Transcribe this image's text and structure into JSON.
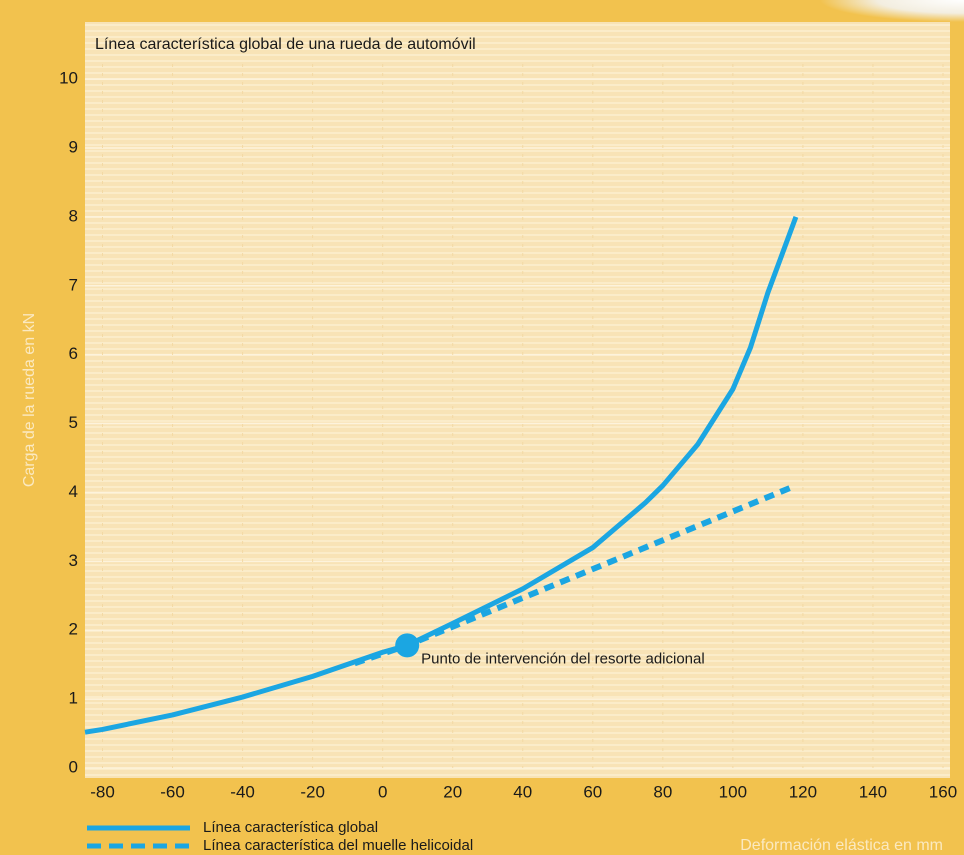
{
  "chart_data": {
    "type": "line",
    "title": "Línea característica global de una rueda de automóvil",
    "x_label": "Deformación elástica en mm",
    "y_label": "Carga de la rueda en kN",
    "xlim": [
      -85,
      162
    ],
    "ylim": [
      0,
      10.8
    ],
    "xticks": [
      -80,
      -60,
      -40,
      -20,
      0,
      20,
      40,
      60,
      80,
      100,
      120,
      140,
      160
    ],
    "yticks": [
      0,
      1,
      2,
      3,
      4,
      5,
      6,
      7,
      8,
      9,
      10
    ],
    "grid": true,
    "series": [
      {
        "name": "Línea característica global",
        "color": "#1ba6e2",
        "style": "solid",
        "x": [
          -85,
          -80,
          -60,
          -40,
          -20,
          0,
          7,
          20,
          40,
          60,
          75,
          80,
          90,
          100,
          105,
          110,
          118
        ],
        "values": [
          0.52,
          0.56,
          0.77,
          1.03,
          1.33,
          1.68,
          1.78,
          2.1,
          2.6,
          3.2,
          3.85,
          4.1,
          4.7,
          5.5,
          6.1,
          6.9,
          8.0
        ]
      },
      {
        "name": "Línea característica del muelle helicoidal",
        "color": "#1ba6e2",
        "style": "dashed",
        "x": [
          -8,
          7,
          118
        ],
        "values": [
          1.52,
          1.78,
          4.1
        ]
      }
    ],
    "annotation": {
      "text": "Punto de intervención del resorte adicional",
      "x": 7,
      "y": 1.78
    }
  }
}
